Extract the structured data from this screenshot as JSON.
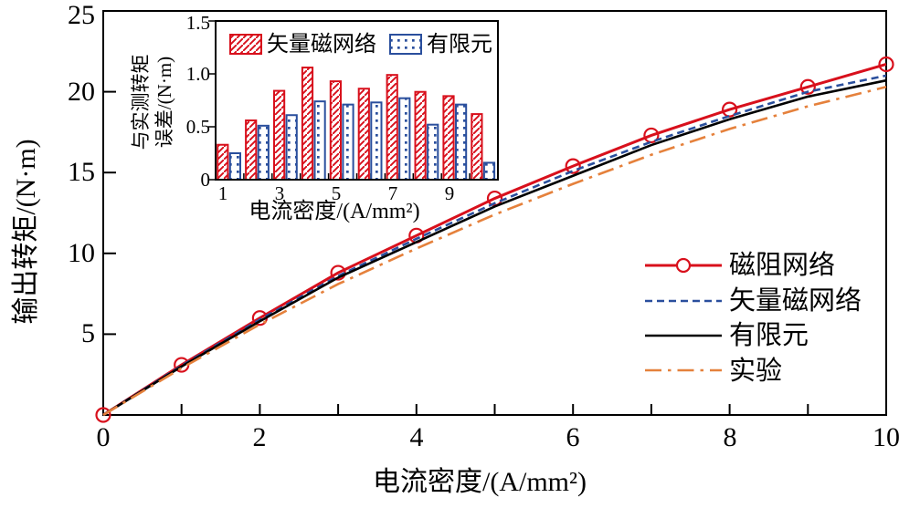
{
  "colors": {
    "reluctance_red": "#d8101c",
    "vector_blue": "#2a4f9d",
    "fem_black": "#000000",
    "experiment_orange": "#e5813c",
    "axis_black": "#000000",
    "background_white": "#ffffff"
  },
  "chart_data": [
    {
      "type": "line",
      "title": "",
      "xlabel": "电流密度/(A/mm²)",
      "ylabel": "输出转矩/(N·m)",
      "xlim": [
        0,
        10
      ],
      "ylim": [
        0,
        25
      ],
      "grid": false,
      "x_tick_labels": [
        "0",
        "2",
        "4",
        "6",
        "8",
        "10"
      ],
      "y_tick_labels": [
        "5",
        "10",
        "15",
        "20",
        "25"
      ],
      "x": [
        0,
        1,
        2,
        3,
        4,
        5,
        6,
        7,
        8,
        9,
        10
      ],
      "series": [
        {
          "key": "reluctance-network",
          "name": "磁阻网络",
          "color": "#d8101c",
          "line": "solid",
          "marker": "open-circle",
          "values": [
            0,
            3.1,
            6.0,
            8.8,
            11.1,
            13.4,
            15.4,
            17.3,
            18.9,
            20.3,
            21.7
          ]
        },
        {
          "key": "vector-magnetic-network",
          "name": "矢量磁网络",
          "color": "#2a4f9d",
          "line": "dashed",
          "marker": "none",
          "values": [
            0,
            3.05,
            5.9,
            8.6,
            10.9,
            13.1,
            15.1,
            16.9,
            18.5,
            20.0,
            21.0
          ]
        },
        {
          "key": "finite-element",
          "name": "有限元",
          "color": "#000000",
          "line": "solid",
          "marker": "none",
          "values": [
            0,
            3.0,
            5.8,
            8.5,
            10.7,
            12.9,
            14.8,
            16.7,
            18.3,
            19.7,
            20.7
          ]
        },
        {
          "key": "experiment",
          "name": "实验",
          "color": "#e5813c",
          "line": "dash-dot",
          "marker": "none",
          "values": [
            0,
            2.9,
            5.6,
            8.1,
            10.3,
            12.4,
            14.3,
            16.1,
            17.7,
            19.1,
            20.3
          ]
        }
      ],
      "legend": {
        "position": "lower-right",
        "items": [
          {
            "label": "磁阻网络"
          },
          {
            "label": "矢量磁网络"
          },
          {
            "label": "有限元"
          },
          {
            "label": "实验"
          }
        ]
      }
    },
    {
      "type": "bar",
      "title": "",
      "xlabel": "电流密度/(A/mm²)",
      "ylabel": "与实测转矩误差/(N·m)",
      "ylabel_lines": [
        "与实测转矩",
        "误差/(N·m)"
      ],
      "xlim": [
        1,
        10
      ],
      "ylim": [
        0,
        1.5
      ],
      "grid": false,
      "x_tick_labels": [
        "1",
        "3",
        "5",
        "7",
        "9"
      ],
      "y_tick_labels": [
        "0",
        "0.5",
        "1.0",
        "1.5"
      ],
      "categories": [
        1,
        2,
        3,
        4,
        5,
        6,
        7,
        8,
        9,
        10
      ],
      "series": [
        {
          "key": "vector-magnetic-network",
          "name": "矢量磁网络",
          "color": "#d8101c",
          "pattern": "diagonal-hatch",
          "values": [
            0.33,
            0.56,
            0.84,
            1.06,
            0.93,
            0.86,
            0.99,
            0.83,
            0.79,
            0.62
          ]
        },
        {
          "key": "finite-element",
          "name": "有限元",
          "color": "#2a4f9d",
          "pattern": "dots",
          "values": [
            0.25,
            0.51,
            0.61,
            0.74,
            0.71,
            0.73,
            0.77,
            0.52,
            0.71,
            0.16
          ]
        }
      ],
      "legend": {
        "position": "upper-inside",
        "items": [
          {
            "label": "矢量磁网络"
          },
          {
            "label": "有限元"
          }
        ]
      }
    }
  ]
}
